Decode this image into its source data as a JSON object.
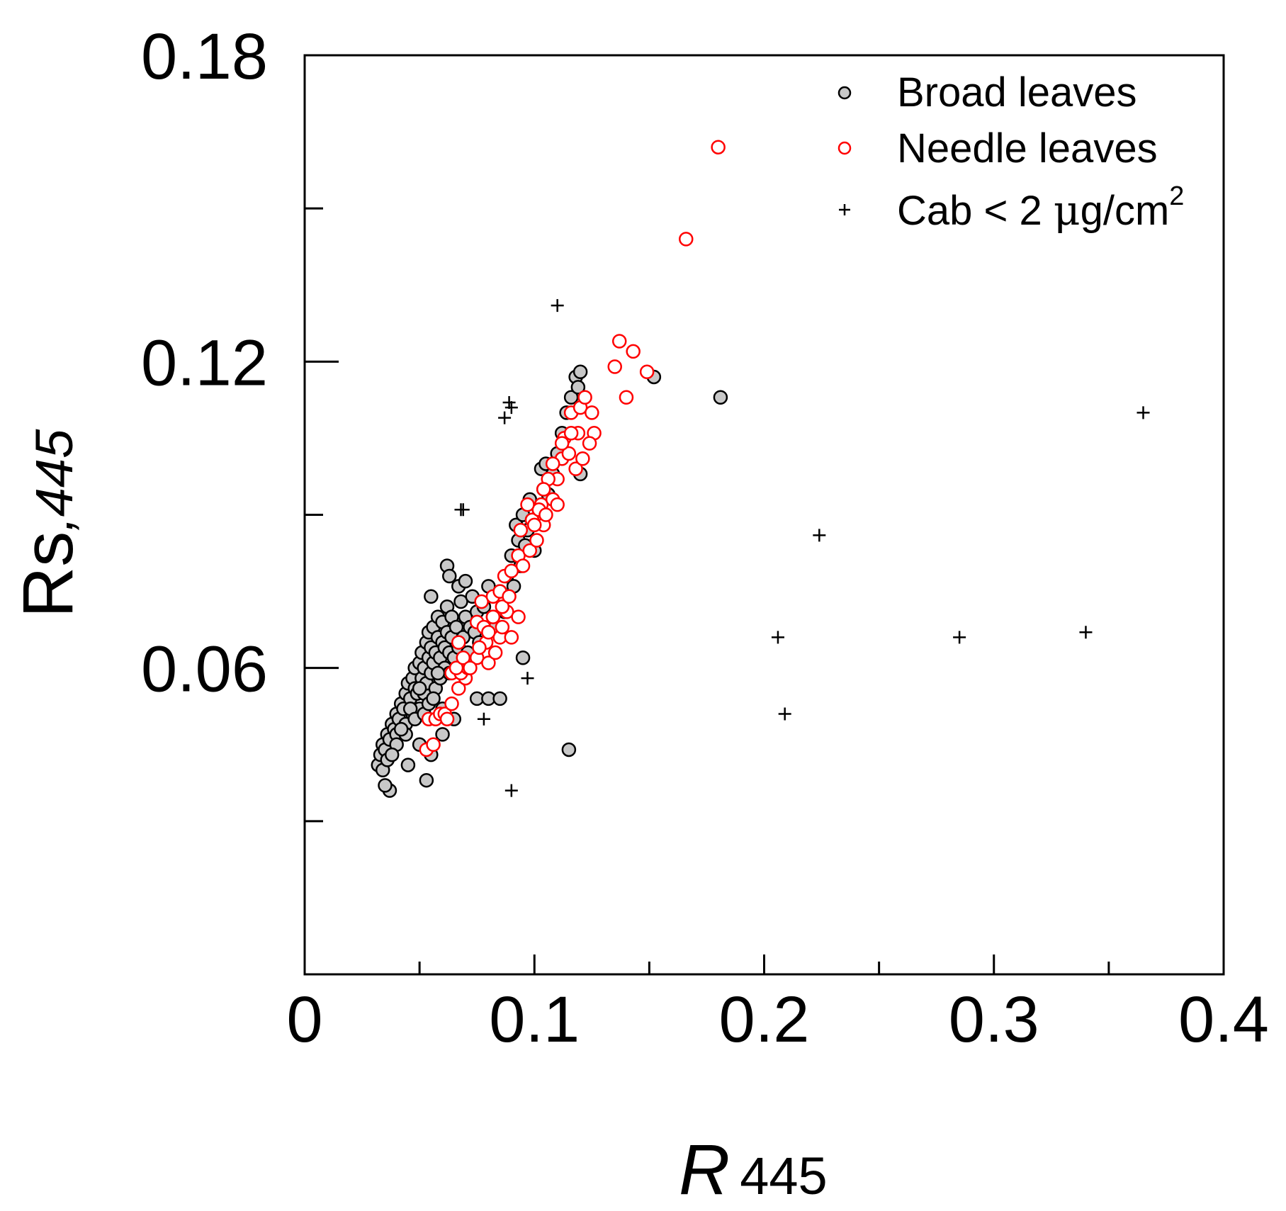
{
  "chart_data": {
    "type": "scatter",
    "title": "",
    "xlabel_main": "R",
    "xlabel_sub": "445",
    "ylabel_main": "Rs",
    "ylabel_sub": ",445",
    "xlim": [
      0,
      0.4
    ],
    "ylim": [
      0,
      0.18
    ],
    "x_ticks_major": [
      0,
      0.1,
      0.2,
      0.3,
      0.4
    ],
    "x_tick_labels": [
      "0",
      "0.1",
      "0.2",
      "0.3",
      "0.4"
    ],
    "x_ticks_minor": [
      0.05,
      0.15,
      0.25,
      0.35
    ],
    "y_ticks_major": [
      0.06,
      0.12,
      0.18
    ],
    "y_tick_labels": [
      "0.06",
      "0.12",
      "0.18"
    ],
    "y_ticks_minor": [
      0.03,
      0.09,
      0.15
    ],
    "grid": false,
    "legend_position": "top-right",
    "legend": {
      "broad": "Broad leaves",
      "needle": "Needle leaves",
      "cab_prefix": "Cab < 2 ",
      "cab_mu": "μ",
      "cab_unit": "g/cm",
      "cab_sup": "2"
    },
    "colors": {
      "broad_fill": "#c8c8c8",
      "broad_stroke": "#000000",
      "needle_stroke": "#ff0000",
      "cab_stroke": "#000000"
    },
    "series": [
      {
        "name": "Broad leaves",
        "marker": "filled-circle",
        "points": [
          [
            0.032,
            0.041
          ],
          [
            0.033,
            0.043
          ],
          [
            0.034,
            0.045
          ],
          [
            0.035,
            0.044
          ],
          [
            0.036,
            0.047
          ],
          [
            0.037,
            0.046
          ],
          [
            0.038,
            0.049
          ],
          [
            0.039,
            0.048
          ],
          [
            0.04,
            0.051
          ],
          [
            0.04,
            0.047
          ],
          [
            0.041,
            0.05
          ],
          [
            0.042,
            0.053
          ],
          [
            0.043,
            0.052
          ],
          [
            0.044,
            0.055
          ],
          [
            0.044,
            0.049
          ],
          [
            0.045,
            0.057
          ],
          [
            0.046,
            0.054
          ],
          [
            0.047,
            0.058
          ],
          [
            0.047,
            0.051
          ],
          [
            0.048,
            0.06
          ],
          [
            0.048,
            0.056
          ],
          [
            0.049,
            0.055
          ],
          [
            0.05,
            0.061
          ],
          [
            0.05,
            0.052
          ],
          [
            0.051,
            0.058
          ],
          [
            0.051,
            0.063
          ],
          [
            0.052,
            0.06
          ],
          [
            0.052,
            0.055
          ],
          [
            0.053,
            0.065
          ],
          [
            0.053,
            0.057
          ],
          [
            0.054,
            0.062
          ],
          [
            0.054,
            0.067
          ],
          [
            0.055,
            0.059
          ],
          [
            0.055,
            0.064
          ],
          [
            0.056,
            0.061
          ],
          [
            0.056,
            0.068
          ],
          [
            0.057,
            0.063
          ],
          [
            0.057,
            0.056
          ],
          [
            0.058,
            0.066
          ],
          [
            0.058,
            0.07
          ],
          [
            0.059,
            0.062
          ],
          [
            0.059,
            0.058
          ],
          [
            0.06,
            0.065
          ],
          [
            0.06,
            0.069
          ],
          [
            0.061,
            0.064
          ],
          [
            0.061,
            0.06
          ],
          [
            0.062,
            0.067
          ],
          [
            0.062,
            0.072
          ],
          [
            0.063,
            0.063
          ],
          [
            0.063,
            0.059
          ],
          [
            0.064,
            0.066
          ],
          [
            0.064,
            0.07
          ],
          [
            0.065,
            0.062
          ],
          [
            0.066,
            0.068
          ],
          [
            0.067,
            0.064
          ],
          [
            0.068,
            0.073
          ],
          [
            0.069,
            0.066
          ],
          [
            0.07,
            0.07
          ],
          [
            0.071,
            0.063
          ],
          [
            0.072,
            0.068
          ],
          [
            0.073,
            0.074
          ],
          [
            0.074,
            0.067
          ],
          [
            0.075,
            0.071
          ],
          [
            0.076,
            0.065
          ],
          [
            0.078,
            0.072
          ],
          [
            0.08,
            0.076
          ],
          [
            0.082,
            0.07
          ],
          [
            0.083,
            0.068
          ],
          [
            0.085,
            0.075
          ],
          [
            0.087,
            0.071
          ],
          [
            0.088,
            0.078
          ],
          [
            0.09,
            0.082
          ],
          [
            0.091,
            0.076
          ],
          [
            0.092,
            0.088
          ],
          [
            0.093,
            0.085
          ],
          [
            0.094,
            0.08
          ],
          [
            0.095,
            0.09
          ],
          [
            0.096,
            0.084
          ],
          [
            0.097,
            0.087
          ],
          [
            0.098,
            0.093
          ],
          [
            0.099,
            0.089
          ],
          [
            0.1,
            0.083
          ],
          [
            0.102,
            0.091
          ],
          [
            0.103,
            0.099
          ],
          [
            0.104,
            0.095
          ],
          [
            0.105,
            0.1
          ],
          [
            0.106,
            0.094
          ],
          [
            0.108,
            0.098
          ],
          [
            0.11,
            0.102
          ],
          [
            0.112,
            0.106
          ],
          [
            0.114,
            0.11
          ],
          [
            0.116,
            0.113
          ],
          [
            0.118,
            0.117
          ],
          [
            0.119,
            0.115
          ],
          [
            0.12,
            0.118
          ],
          [
            0.062,
            0.08
          ],
          [
            0.063,
            0.078
          ],
          [
            0.055,
            0.074
          ],
          [
            0.06,
            0.052
          ],
          [
            0.045,
            0.041
          ],
          [
            0.05,
            0.045
          ],
          [
            0.055,
            0.043
          ],
          [
            0.06,
            0.047
          ],
          [
            0.065,
            0.05
          ],
          [
            0.075,
            0.054
          ],
          [
            0.08,
            0.054
          ],
          [
            0.085,
            0.054
          ],
          [
            0.095,
            0.062
          ],
          [
            0.12,
            0.098
          ],
          [
            0.115,
            0.044
          ],
          [
            0.152,
            0.117
          ],
          [
            0.181,
            0.113
          ],
          [
            0.037,
            0.036
          ],
          [
            0.035,
            0.037
          ],
          [
            0.053,
            0.038
          ],
          [
            0.034,
            0.04
          ],
          [
            0.036,
            0.042
          ],
          [
            0.04,
            0.045
          ],
          [
            0.044,
            0.047
          ],
          [
            0.038,
            0.043
          ],
          [
            0.042,
            0.048
          ],
          [
            0.046,
            0.052
          ],
          [
            0.048,
            0.05
          ],
          [
            0.05,
            0.056
          ],
          [
            0.052,
            0.051
          ],
          [
            0.054,
            0.053
          ],
          [
            0.056,
            0.054
          ],
          [
            0.058,
            0.059
          ],
          [
            0.067,
            0.076
          ],
          [
            0.07,
            0.077
          ]
        ]
      },
      {
        "name": "Needle leaves",
        "marker": "open-circle",
        "points": [
          [
            0.053,
            0.044
          ],
          [
            0.056,
            0.045
          ],
          [
            0.054,
            0.05
          ],
          [
            0.057,
            0.05
          ],
          [
            0.059,
            0.051
          ],
          [
            0.061,
            0.051
          ],
          [
            0.062,
            0.05
          ],
          [
            0.064,
            0.053
          ],
          [
            0.067,
            0.056
          ],
          [
            0.07,
            0.058
          ],
          [
            0.064,
            0.059
          ],
          [
            0.068,
            0.059
          ],
          [
            0.071,
            0.06
          ],
          [
            0.066,
            0.06
          ],
          [
            0.069,
            0.062
          ],
          [
            0.075,
            0.062
          ],
          [
            0.079,
            0.065
          ],
          [
            0.08,
            0.061
          ],
          [
            0.083,
            0.063
          ],
          [
            0.085,
            0.066
          ],
          [
            0.067,
            0.065
          ],
          [
            0.075,
            0.069
          ],
          [
            0.078,
            0.068
          ],
          [
            0.08,
            0.067
          ],
          [
            0.082,
            0.07
          ],
          [
            0.086,
            0.068
          ],
          [
            0.088,
            0.071
          ],
          [
            0.09,
            0.066
          ],
          [
            0.093,
            0.07
          ],
          [
            0.077,
            0.073
          ],
          [
            0.082,
            0.074
          ],
          [
            0.085,
            0.075
          ],
          [
            0.087,
            0.078
          ],
          [
            0.09,
            0.079
          ],
          [
            0.093,
            0.082
          ],
          [
            0.095,
            0.08
          ],
          [
            0.098,
            0.083
          ],
          [
            0.101,
            0.085
          ],
          [
            0.104,
            0.088
          ],
          [
            0.094,
            0.087
          ],
          [
            0.099,
            0.089
          ],
          [
            0.103,
            0.092
          ],
          [
            0.108,
            0.093
          ],
          [
            0.11,
            0.097
          ],
          [
            0.112,
            0.101
          ],
          [
            0.115,
            0.102
          ],
          [
            0.118,
            0.099
          ],
          [
            0.113,
            0.105
          ],
          [
            0.116,
            0.11
          ],
          [
            0.12,
            0.111
          ],
          [
            0.122,
            0.113
          ],
          [
            0.125,
            0.11
          ],
          [
            0.126,
            0.106
          ],
          [
            0.124,
            0.104
          ],
          [
            0.119,
            0.106
          ],
          [
            0.121,
            0.101
          ],
          [
            0.108,
            0.1
          ],
          [
            0.106,
            0.097
          ],
          [
            0.104,
            0.095
          ],
          [
            0.102,
            0.091
          ],
          [
            0.1,
            0.088
          ],
          [
            0.097,
            0.092
          ],
          [
            0.105,
            0.09
          ],
          [
            0.11,
            0.092
          ],
          [
            0.112,
            0.104
          ],
          [
            0.116,
            0.106
          ],
          [
            0.072,
            0.06
          ],
          [
            0.076,
            0.064
          ],
          [
            0.086,
            0.072
          ],
          [
            0.089,
            0.074
          ],
          [
            0.135,
            0.119
          ],
          [
            0.137,
            0.124
          ],
          [
            0.143,
            0.122
          ],
          [
            0.149,
            0.118
          ],
          [
            0.14,
            0.113
          ],
          [
            0.166,
            0.144
          ],
          [
            0.18,
            0.162
          ]
        ]
      },
      {
        "name": "Cab < 2 μg/cm2",
        "marker": "plus",
        "points": [
          [
            0.11,
            0.131
          ],
          [
            0.087,
            0.109
          ],
          [
            0.089,
            0.112
          ],
          [
            0.09,
            0.111
          ],
          [
            0.068,
            0.091
          ],
          [
            0.069,
            0.091
          ],
          [
            0.097,
            0.058
          ],
          [
            0.078,
            0.05
          ],
          [
            0.09,
            0.036
          ],
          [
            0.206,
            0.066
          ],
          [
            0.209,
            0.051
          ],
          [
            0.224,
            0.086
          ],
          [
            0.285,
            0.066
          ],
          [
            0.34,
            0.067
          ],
          [
            0.365,
            0.11
          ]
        ]
      }
    ]
  }
}
